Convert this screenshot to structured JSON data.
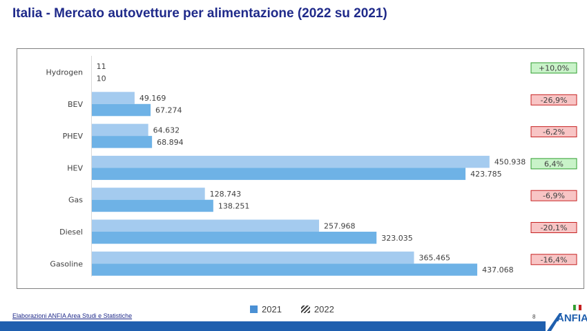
{
  "header": {
    "title": "Italia - Mercato autovetture per alimentazione (2022 su 2021)"
  },
  "legend": {
    "items": [
      {
        "label": "2021",
        "icon": "solid-square-icon"
      },
      {
        "label": "2022",
        "icon": "hatched-square-icon"
      }
    ]
  },
  "footer": {
    "source": "Elaborazioni ANFIA Area Studi e Statistiche",
    "page_number": "8",
    "logo_text": "ANFIA"
  },
  "colors": {
    "bar_light": "#a4cbef",
    "bar_dark": "#6eb2e6",
    "title": "#1f2a8a",
    "brand_blue": "#1f5fae",
    "badge_pos_bg": "#c9f3c9",
    "badge_pos_border": "#2e9e2e",
    "badge_neg_bg": "#f8c5c5",
    "badge_neg_border": "#c62020"
  },
  "chart_data": {
    "type": "bar",
    "orientation": "horizontal",
    "xlim": [
      0,
      480000
    ],
    "categories": [
      "Hydrogen",
      "BEV",
      "PHEV",
      "HEV",
      "Gas",
      "Diesel",
      "Gasoline"
    ],
    "series": [
      {
        "values": [
          11,
          49169,
          64632,
          450938,
          128743,
          257968,
          365465
        ],
        "labels": [
          "11",
          "49.169",
          "64.632",
          "450.938",
          "128.743",
          "257.968",
          "365.465"
        ]
      },
      {
        "values": [
          10,
          67274,
          68894,
          423785,
          138251,
          323035,
          437068
        ],
        "labels": [
          "10",
          "67.274",
          "68.894",
          "423.785",
          "138.251",
          "323.035",
          "437.068"
        ]
      }
    ],
    "changes": [
      "+10,0%",
      "-26,9%",
      "-6,2%",
      "6,4%",
      "-6,9%",
      "-20,1%",
      "-16,4%"
    ],
    "change_positive": [
      true,
      false,
      false,
      true,
      false,
      false,
      false
    ],
    "grid": false,
    "legend_position": "bottom"
  }
}
